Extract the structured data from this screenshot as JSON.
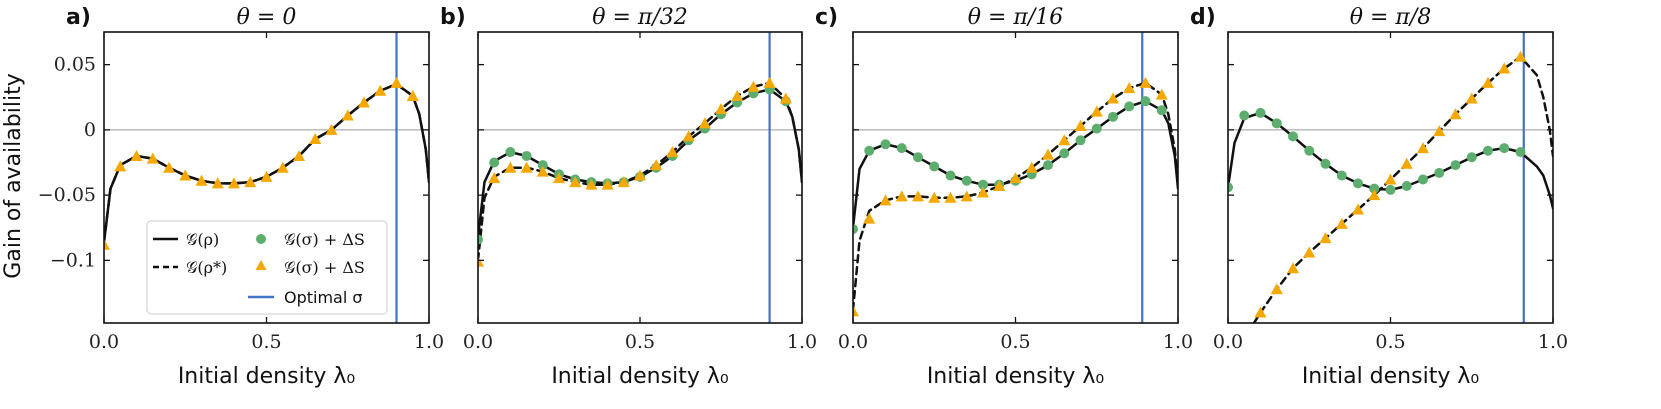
{
  "figure": {
    "y_axis_label": "Gain of availability",
    "legend": {
      "solid_label": "𝒢(ρ)",
      "dashed_label": "𝒢(ρ*)",
      "circle_label": "𝒢(σ) + ΔS",
      "triangle_label": "𝒢(σ) + ΔS",
      "vline_label": "Optimal σ"
    },
    "colors": {
      "circle": "#5DAE6E",
      "triangle": "#F5A800",
      "vline": "#4472C4",
      "curve": "#111111",
      "zero_line": "#9a9a9a"
    }
  },
  "chart_data": [
    {
      "type": "line",
      "panel": "a)",
      "title": "θ = 0",
      "xlabel": "Initial density λ₀",
      "ylabel": "Gain of availability",
      "xlim": [
        0,
        1
      ],
      "ylim": [
        -0.148,
        0.075
      ],
      "x_ticks": [
        "0.0",
        "0.5",
        "1.0"
      ],
      "y_ticks": [
        "0.05",
        "0",
        "−0.05",
        "−0.1"
      ],
      "optimal_sigma_x": 0.9,
      "series": [
        {
          "name": "𝒢(ρ)",
          "style": "solid",
          "x": [
            0.0,
            0.02,
            0.05,
            0.1,
            0.15,
            0.2,
            0.25,
            0.3,
            0.35,
            0.4,
            0.45,
            0.5,
            0.55,
            0.6,
            0.65,
            0.7,
            0.75,
            0.8,
            0.85,
            0.9,
            0.95,
            0.97,
            0.99,
            1.0
          ],
          "y": [
            -0.086,
            -0.045,
            -0.027,
            -0.02,
            -0.022,
            -0.029,
            -0.035,
            -0.039,
            -0.041,
            -0.041,
            -0.04,
            -0.036,
            -0.029,
            -0.02,
            -0.007,
            0.0,
            0.011,
            0.021,
            0.03,
            0.035,
            0.026,
            0.012,
            -0.015,
            -0.04
          ]
        },
        {
          "name": "𝒢(ρ*)",
          "style": "dashed",
          "x": [
            0.0,
            0.02,
            0.05,
            0.1,
            0.15,
            0.2,
            0.25,
            0.3,
            0.35,
            0.4,
            0.45,
            0.5,
            0.55,
            0.6,
            0.65,
            0.7,
            0.75,
            0.8,
            0.85,
            0.9,
            0.95,
            0.97,
            0.99,
            1.0
          ],
          "y": [
            -0.086,
            -0.045,
            -0.027,
            -0.02,
            -0.022,
            -0.029,
            -0.035,
            -0.039,
            -0.041,
            -0.041,
            -0.04,
            -0.036,
            -0.029,
            -0.02,
            -0.007,
            0.0,
            0.011,
            0.021,
            0.03,
            0.035,
            0.026,
            0.012,
            -0.015,
            -0.04
          ]
        },
        {
          "name": "𝒢(σ) + ΔS (circles)",
          "style": "circle",
          "x": [],
          "y": []
        },
        {
          "name": "𝒢(σ) + ΔS (triangles)",
          "style": "triangle",
          "x": [
            0.0,
            0.05,
            0.1,
            0.15,
            0.2,
            0.25,
            0.3,
            0.35,
            0.4,
            0.45,
            0.5,
            0.55,
            0.6,
            0.65,
            0.7,
            0.75,
            0.8,
            0.85,
            0.9,
            0.95
          ],
          "y": [
            -0.088,
            -0.028,
            -0.02,
            -0.022,
            -0.029,
            -0.035,
            -0.039,
            -0.041,
            -0.041,
            -0.04,
            -0.036,
            -0.029,
            -0.02,
            -0.007,
            0.0,
            0.011,
            0.021,
            0.03,
            0.036,
            0.026
          ]
        }
      ]
    },
    {
      "type": "line",
      "panel": "b)",
      "title": "θ = π/32",
      "xlabel": "Initial density λ₀",
      "ylabel": "",
      "xlim": [
        0,
        1
      ],
      "ylim": [
        -0.148,
        0.075
      ],
      "x_ticks": [
        "0.0",
        "0.5",
        "1.0"
      ],
      "y_ticks": [],
      "optimal_sigma_x": 0.9,
      "series": [
        {
          "name": "𝒢(ρ)",
          "style": "solid",
          "x": [
            0.0,
            0.02,
            0.05,
            0.1,
            0.15,
            0.2,
            0.25,
            0.3,
            0.35,
            0.4,
            0.45,
            0.5,
            0.55,
            0.6,
            0.65,
            0.7,
            0.75,
            0.8,
            0.85,
            0.9,
            0.95,
            0.97,
            0.99,
            1.0
          ],
          "y": [
            -0.082,
            -0.04,
            -0.024,
            -0.017,
            -0.02,
            -0.027,
            -0.034,
            -0.038,
            -0.04,
            -0.041,
            -0.04,
            -0.036,
            -0.029,
            -0.02,
            -0.008,
            0.001,
            0.012,
            0.021,
            0.028,
            0.031,
            0.022,
            0.01,
            -0.015,
            -0.04
          ]
        },
        {
          "name": "𝒢(ρ*)",
          "style": "dashed",
          "x": [
            0.0,
            0.02,
            0.05,
            0.1,
            0.15,
            0.2,
            0.25,
            0.3,
            0.35,
            0.4,
            0.45,
            0.5,
            0.55,
            0.6,
            0.65,
            0.7,
            0.75,
            0.8,
            0.85,
            0.9,
            0.95,
            0.97,
            0.99,
            1.0
          ],
          "y": [
            -0.1,
            -0.052,
            -0.036,
            -0.029,
            -0.029,
            -0.032,
            -0.037,
            -0.04,
            -0.042,
            -0.042,
            -0.04,
            -0.035,
            -0.027,
            -0.017,
            -0.005,
            0.005,
            0.016,
            0.026,
            0.033,
            0.036,
            0.024,
            0.01,
            -0.015,
            -0.04
          ]
        },
        {
          "name": "𝒢(σ) + ΔS (circles)",
          "style": "circle",
          "x": [
            0.0,
            0.05,
            0.1,
            0.15,
            0.2,
            0.25,
            0.3,
            0.35,
            0.4,
            0.45,
            0.5,
            0.55,
            0.6,
            0.65,
            0.7,
            0.75,
            0.8,
            0.85,
            0.9,
            0.95
          ],
          "y": [
            -0.084,
            -0.025,
            -0.017,
            -0.02,
            -0.027,
            -0.034,
            -0.038,
            -0.04,
            -0.041,
            -0.04,
            -0.036,
            -0.029,
            -0.02,
            -0.008,
            0.001,
            0.012,
            0.021,
            0.028,
            0.031,
            0.022
          ]
        },
        {
          "name": "𝒢(σ) + ΔS (triangles)",
          "style": "triangle",
          "x": [
            0.0,
            0.05,
            0.1,
            0.15,
            0.2,
            0.25,
            0.3,
            0.35,
            0.4,
            0.45,
            0.5,
            0.55,
            0.6,
            0.65,
            0.7,
            0.75,
            0.8,
            0.85,
            0.9,
            0.95
          ],
          "y": [
            -0.101,
            -0.037,
            -0.029,
            -0.029,
            -0.032,
            -0.037,
            -0.04,
            -0.042,
            -0.042,
            -0.04,
            -0.035,
            -0.027,
            -0.017,
            -0.005,
            0.005,
            0.016,
            0.026,
            0.033,
            0.036,
            0.024
          ]
        }
      ]
    },
    {
      "type": "line",
      "panel": "c)",
      "title": "θ = π/16",
      "xlabel": "Initial density λ₀",
      "ylabel": "",
      "xlim": [
        0,
        1
      ],
      "ylim": [
        -0.148,
        0.075
      ],
      "x_ticks": [
        "0.0",
        "0.5",
        "1.0"
      ],
      "y_ticks": [],
      "optimal_sigma_x": 0.89,
      "series": [
        {
          "name": "𝒢(ρ)",
          "style": "solid",
          "x": [
            0.0,
            0.02,
            0.05,
            0.1,
            0.15,
            0.2,
            0.25,
            0.3,
            0.35,
            0.4,
            0.45,
            0.5,
            0.55,
            0.6,
            0.65,
            0.7,
            0.75,
            0.8,
            0.85,
            0.9,
            0.95,
            0.97,
            0.99,
            1.0
          ],
          "y": [
            -0.075,
            -0.03,
            -0.016,
            -0.011,
            -0.014,
            -0.021,
            -0.028,
            -0.035,
            -0.039,
            -0.042,
            -0.042,
            -0.039,
            -0.034,
            -0.027,
            -0.018,
            -0.008,
            0.001,
            0.01,
            0.018,
            0.022,
            0.015,
            0.005,
            -0.02,
            -0.045
          ]
        },
        {
          "name": "𝒢(ρ*)",
          "style": "dashed",
          "x": [
            0.0,
            0.02,
            0.05,
            0.1,
            0.15,
            0.2,
            0.25,
            0.3,
            0.35,
            0.4,
            0.45,
            0.5,
            0.55,
            0.6,
            0.65,
            0.7,
            0.75,
            0.8,
            0.85,
            0.9,
            0.95,
            0.97,
            0.99,
            1.0
          ],
          "y": [
            -0.138,
            -0.085,
            -0.062,
            -0.054,
            -0.051,
            -0.051,
            -0.052,
            -0.052,
            -0.051,
            -0.048,
            -0.043,
            -0.037,
            -0.029,
            -0.019,
            -0.008,
            0.003,
            0.014,
            0.024,
            0.032,
            0.036,
            0.027,
            0.012,
            -0.015,
            -0.04
          ]
        },
        {
          "name": "𝒢(σ) + ΔS (circles)",
          "style": "circle",
          "x": [
            0.0,
            0.05,
            0.1,
            0.15,
            0.2,
            0.25,
            0.3,
            0.35,
            0.4,
            0.45,
            0.5,
            0.55,
            0.6,
            0.65,
            0.7,
            0.75,
            0.8,
            0.85,
            0.9,
            0.95
          ],
          "y": [
            -0.076,
            -0.016,
            -0.011,
            -0.014,
            -0.021,
            -0.028,
            -0.035,
            -0.039,
            -0.042,
            -0.042,
            -0.039,
            -0.034,
            -0.027,
            -0.018,
            -0.008,
            0.001,
            0.01,
            0.018,
            0.022,
            0.015
          ]
        },
        {
          "name": "𝒢(σ) + ΔS (triangles)",
          "style": "triangle",
          "x": [
            0.0,
            0.05,
            0.1,
            0.15,
            0.2,
            0.25,
            0.3,
            0.35,
            0.4,
            0.45,
            0.5,
            0.55,
            0.6,
            0.65,
            0.7,
            0.75,
            0.8,
            0.85,
            0.9,
            0.95
          ],
          "y": [
            -0.139,
            -0.068,
            -0.054,
            -0.051,
            -0.051,
            -0.052,
            -0.052,
            -0.051,
            -0.048,
            -0.043,
            -0.037,
            -0.029,
            -0.019,
            -0.008,
            0.003,
            0.014,
            0.024,
            0.032,
            0.036,
            0.027
          ]
        }
      ]
    },
    {
      "type": "line",
      "panel": "d)",
      "title": "θ = π/8",
      "xlabel": "Initial density λ₀",
      "ylabel": "",
      "xlim": [
        0,
        1
      ],
      "ylim": [
        -0.148,
        0.075
      ],
      "x_ticks": [
        "0.0",
        "0.5",
        "1.0"
      ],
      "y_ticks": [],
      "optimal_sigma_x": 0.91,
      "series": [
        {
          "name": "𝒢(ρ)",
          "style": "solid",
          "x": [
            0.0,
            0.02,
            0.05,
            0.1,
            0.15,
            0.2,
            0.25,
            0.3,
            0.35,
            0.4,
            0.45,
            0.5,
            0.55,
            0.6,
            0.65,
            0.7,
            0.75,
            0.8,
            0.85,
            0.9,
            0.95,
            0.97,
            0.99,
            1.0
          ],
          "y": [
            -0.044,
            -0.01,
            0.009,
            0.013,
            0.005,
            -0.005,
            -0.016,
            -0.026,
            -0.035,
            -0.041,
            -0.045,
            -0.046,
            -0.043,
            -0.038,
            -0.033,
            -0.027,
            -0.021,
            -0.016,
            -0.014,
            -0.017,
            -0.028,
            -0.035,
            -0.05,
            -0.06
          ]
        },
        {
          "name": "𝒢(ρ*)",
          "style": "dashed",
          "x": [
            0.08,
            0.1,
            0.15,
            0.2,
            0.25,
            0.3,
            0.35,
            0.4,
            0.45,
            0.5,
            0.55,
            0.6,
            0.65,
            0.7,
            0.75,
            0.8,
            0.85,
            0.9,
            0.95,
            0.97,
            0.99,
            1.0
          ],
          "y": [
            -0.148,
            -0.14,
            -0.122,
            -0.106,
            -0.094,
            -0.083,
            -0.072,
            -0.061,
            -0.05,
            -0.038,
            -0.026,
            -0.014,
            -0.001,
            0.012,
            0.024,
            0.036,
            0.047,
            0.056,
            0.042,
            0.025,
            0.0,
            -0.02
          ]
        },
        {
          "name": "𝒢(σ) + ΔS (circles)",
          "style": "circle",
          "x": [
            0.0,
            0.05,
            0.1,
            0.15,
            0.2,
            0.25,
            0.3,
            0.35,
            0.4,
            0.45,
            0.5,
            0.55,
            0.6,
            0.65,
            0.7,
            0.75,
            0.8,
            0.85,
            0.9
          ],
          "y": [
            -0.044,
            0.011,
            0.013,
            0.005,
            -0.005,
            -0.016,
            -0.026,
            -0.035,
            -0.041,
            -0.045,
            -0.046,
            -0.043,
            -0.038,
            -0.033,
            -0.027,
            -0.021,
            -0.016,
            -0.014,
            -0.017
          ]
        },
        {
          "name": "𝒢(σ) + ΔS (triangles)",
          "style": "triangle",
          "x": [
            0.1,
            0.15,
            0.2,
            0.25,
            0.3,
            0.35,
            0.4,
            0.45,
            0.5,
            0.55,
            0.6,
            0.65,
            0.7,
            0.75,
            0.8,
            0.85,
            0.9
          ],
          "y": [
            -0.14,
            -0.122,
            -0.106,
            -0.094,
            -0.083,
            -0.072,
            -0.061,
            -0.05,
            -0.038,
            -0.026,
            -0.014,
            -0.001,
            0.012,
            0.024,
            0.036,
            0.047,
            0.056
          ]
        }
      ]
    }
  ]
}
